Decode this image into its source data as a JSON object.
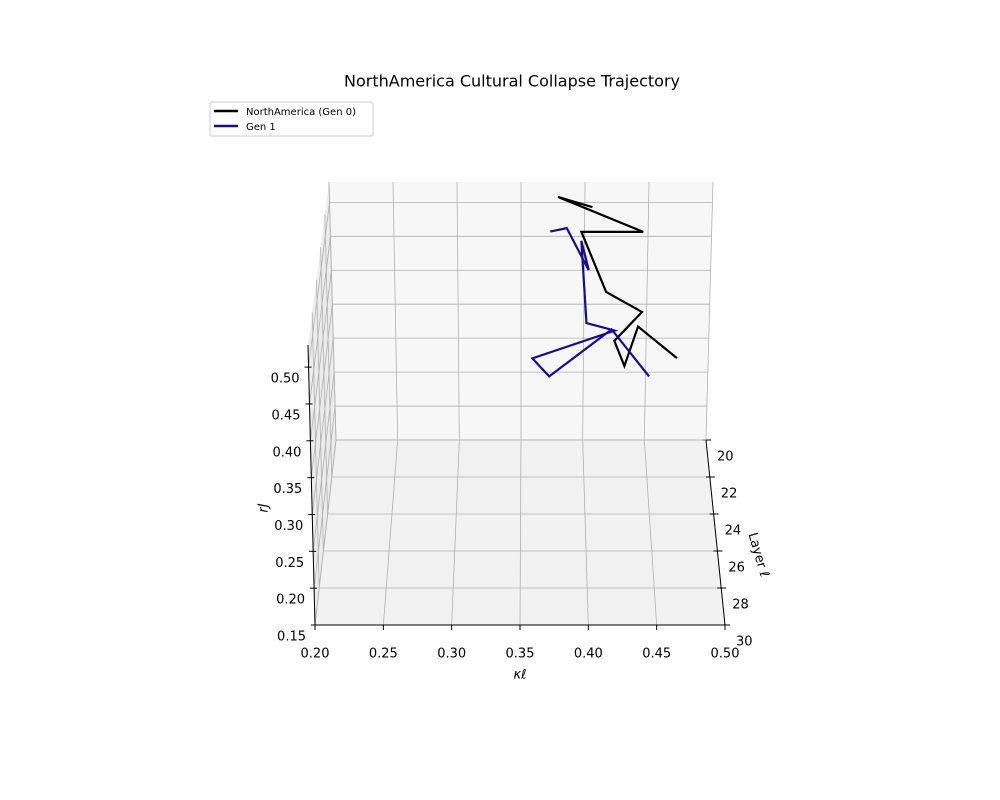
{
  "chart_data": {
    "type": "line3d",
    "title": "NorthAmerica Cultural Collapse Trajectory",
    "x_label": "κℓ",
    "y_label": "Layer ℓ",
    "z_label": "rJ",
    "xlim": [
      0.2,
      0.5
    ],
    "ylim": [
      20,
      30
    ],
    "zlim": [
      0.15,
      0.53
    ],
    "xticks": [
      {
        "value": 0.2,
        "label": "0.20"
      },
      {
        "value": 0.25,
        "label": "0.25"
      },
      {
        "value": 0.3,
        "label": "0.30"
      },
      {
        "value": 0.35,
        "label": "0.35"
      },
      {
        "value": 0.4,
        "label": "0.40"
      },
      {
        "value": 0.45,
        "label": "0.45"
      },
      {
        "value": 0.5,
        "label": "0.50"
      }
    ],
    "yticks": [
      20,
      22,
      24,
      26,
      28,
      30
    ],
    "zticks": [
      0.15,
      {
        "value": 0.2,
        "label": "0.20"
      },
      0.25,
      {
        "value": 0.3,
        "label": "0.30"
      },
      0.35,
      {
        "value": 0.4,
        "label": "0.40"
      },
      0.45,
      {
        "value": 0.5,
        "label": "0.50"
      }
    ],
    "grid": true,
    "legend_position": "upper left",
    "series": [
      {
        "name": "NorthAmerica (Gen 0)",
        "color": "#000000",
        "x": [
          0.406,
          0.379,
          0.445,
          0.397,
          0.416,
          0.444,
          0.422,
          0.43,
          0.439,
          0.469
        ],
        "y": [
          20,
          20,
          21,
          21,
          22,
          22,
          23,
          23,
          24,
          24
        ],
        "z": [
          0.493,
          0.508,
          0.481,
          0.481,
          0.418,
          0.389,
          0.372,
          0.336,
          0.417,
          0.372
        ]
      },
      {
        "name": "Gen 1",
        "color": "#1a0a8c",
        "x": [
          0.373,
          0.386,
          0.403,
          0.397,
          0.401,
          0.423,
          0.359,
          0.372,
          0.419,
          0.448
        ],
        "y": [
          20,
          20,
          21,
          21,
          22,
          22,
          23,
          23,
          24,
          24
        ],
        "z": [
          0.457,
          0.462,
          0.425,
          0.468,
          0.373,
          0.362,
          0.347,
          0.321,
          0.413,
          0.346
        ]
      }
    ]
  }
}
